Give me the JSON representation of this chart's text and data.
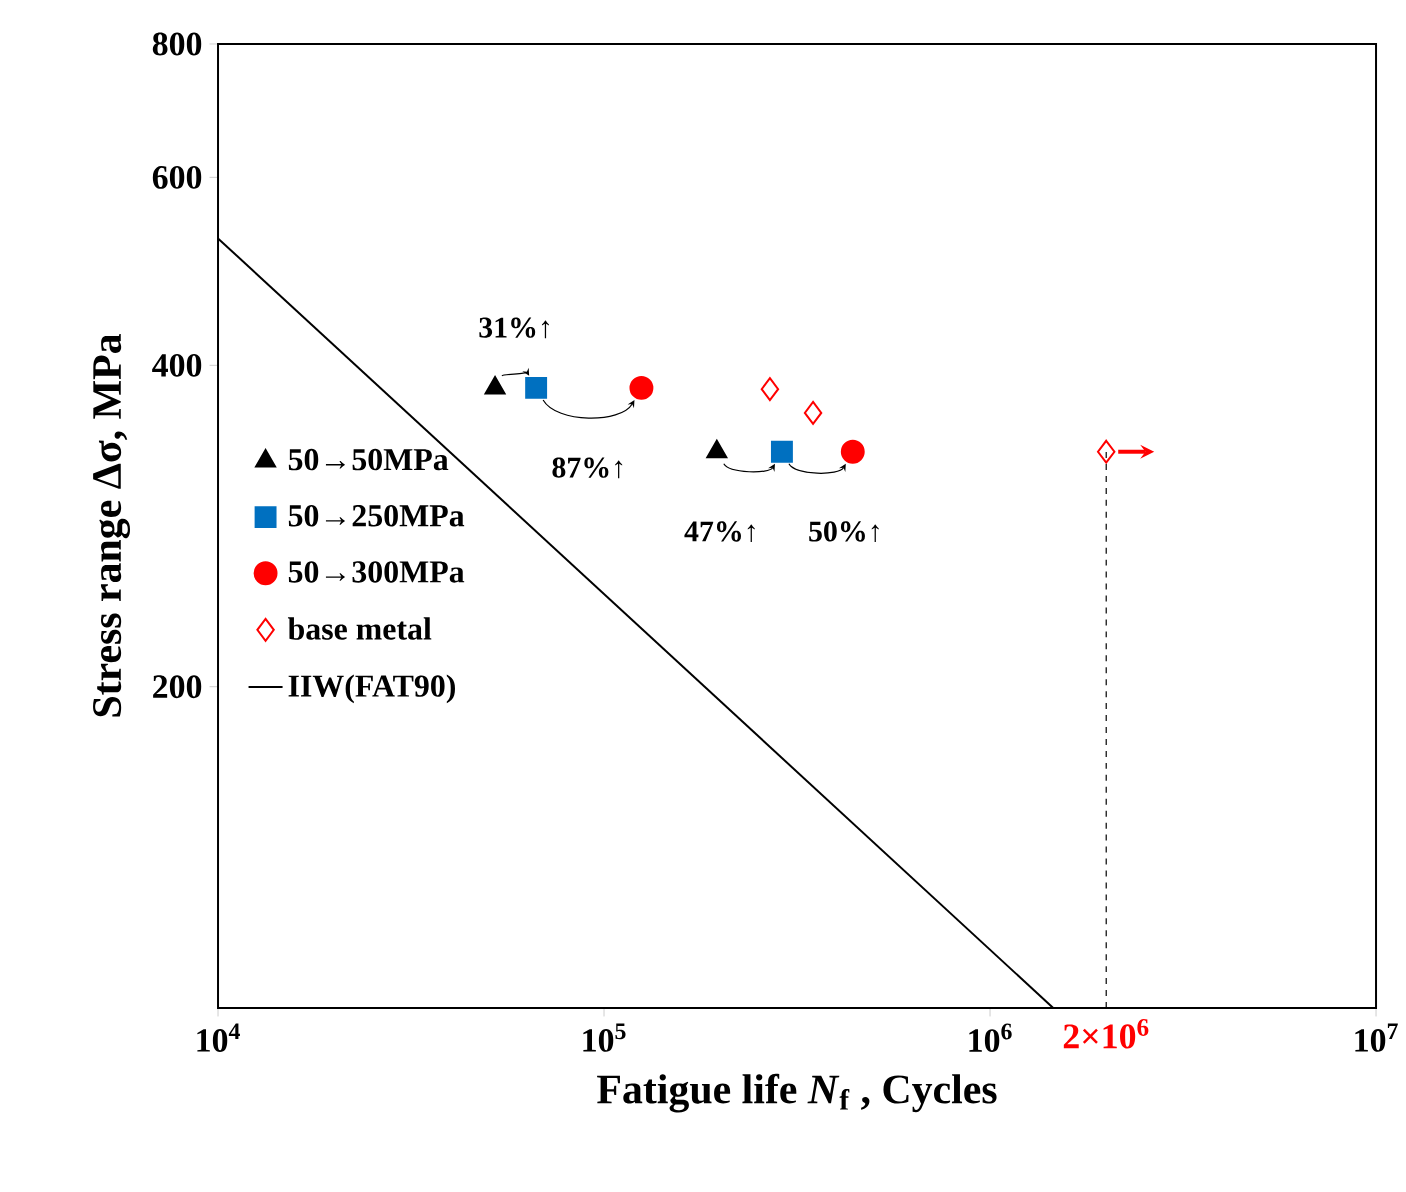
{
  "chart_data": {
    "type": "scatter",
    "xlabel": "Fatigue life *N*$_{f}$ , Cycles",
    "ylabel": "Stress range Δσ, MPa",
    "log": "xy",
    "xlim": [
      10000,
      10000000
    ],
    "ylim": [
      100,
      800
    ],
    "xticks": [
      {
        "value": 10000,
        "label": "10$^{4}$"
      },
      {
        "value": 100000,
        "label": "10$^{5}$"
      },
      {
        "value": 1000000,
        "label": "10$^{6}$"
      },
      {
        "value": 10000000,
        "label": "10$^{7}$"
      }
    ],
    "yticks": [
      200,
      400,
      600,
      800
    ],
    "grid": false,
    "legend": "left",
    "series": [
      {
        "name": "50→50MPa",
        "color": "#000000",
        "marker": "triangle",
        "x": [
          52200,
          196000
        ],
        "values": [
          381,
          332
        ]
      },
      {
        "name": "50→250MPa",
        "color": "#0070c0",
        "marker": "square",
        "x": [
          66700,
          289000
        ],
        "values": [
          381,
          332
        ]
      },
      {
        "name": "50→300MPa",
        "color": "#ff0000",
        "marker": "circle",
        "x": [
          125000,
          441000
        ],
        "values": [
          381,
          332
        ]
      },
      {
        "name": "base metal",
        "color": "#ff0000",
        "marker": "diamond",
        "x": [
          269000,
          348000,
          2000000
        ],
        "values": [
          380,
          361,
          332
        ]
      },
      {
        "name": "IIW(FAT90)",
        "type": "line",
        "color": "#000000",
        "marker": "none",
        "line_style": "solid",
        "x": [
          10000,
          1458000
        ],
        "values": [
          526,
          100
        ]
      }
    ],
    "ref_lines": [
      {
        "axis": "x",
        "value": 2000000,
        "label": "2×10$^{6}$",
        "color": "#000000",
        "line_style": "dashed"
      }
    ],
    "annotations": [
      "31%↑",
      "87%↑",
      "47%↑",
      "50%↑"
    ]
  }
}
